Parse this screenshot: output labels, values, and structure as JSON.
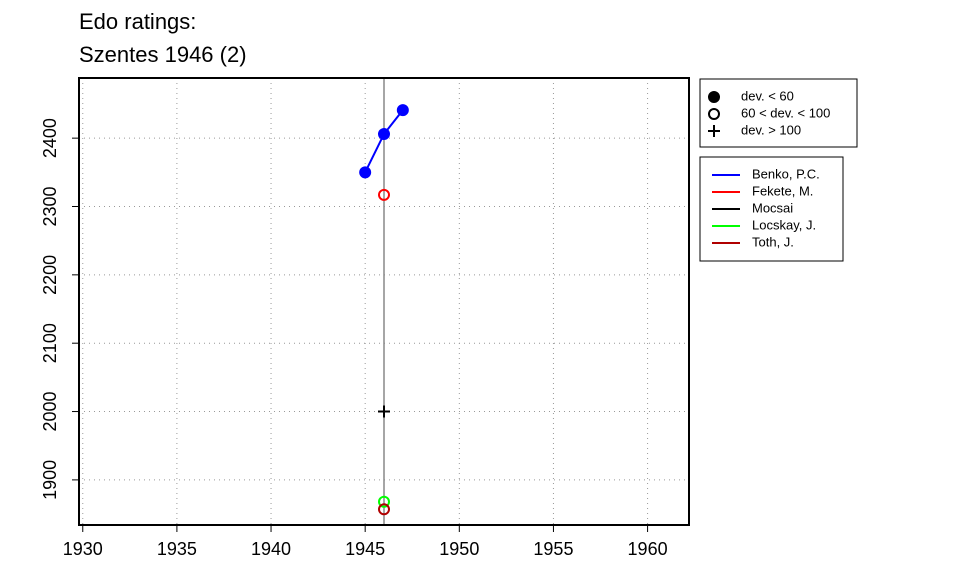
{
  "chart_data": {
    "type": "line",
    "title": "Edo ratings:",
    "subtitle": "Szentes 1946 (2)",
    "xlim": [
      1929.8,
      1962.2
    ],
    "xticks": [
      1930,
      1935,
      1940,
      1945,
      1950,
      1955,
      1960
    ],
    "ylim": [
      1834,
      2488
    ],
    "yticks": [
      1900,
      2000,
      2100,
      2200,
      2300,
      2400
    ],
    "grid": true,
    "reference_line_x": 1946,
    "reference_line_color": "#888888",
    "marker_legend": [
      {
        "label": "dev. < 60",
        "marker": "filled"
      },
      {
        "label": "60 < dev. < 100",
        "marker": "open"
      },
      {
        "label": "dev. > 100",
        "marker": "plus"
      }
    ],
    "series": [
      {
        "name": "Benko, P.C.",
        "color": "#0000ff",
        "marker": "filled",
        "x": [
          1945,
          1946,
          1947
        ],
        "values": [
          2350,
          2406,
          2441
        ]
      },
      {
        "name": "Fekete, M.",
        "color": "#ff0000",
        "marker": "open",
        "x": [
          1946
        ],
        "values": [
          2317
        ]
      },
      {
        "name": "Mocsai",
        "color": "#000000",
        "marker": "plus",
        "x": [
          1946
        ],
        "values": [
          2000
        ]
      },
      {
        "name": "Locskay, J.",
        "color": "#00ff00",
        "marker": "open",
        "x": [
          1946
        ],
        "values": [
          1868
        ]
      },
      {
        "name": "Toth, J.",
        "color": "#b00000",
        "marker": "open",
        "x": [
          1946
        ],
        "values": [
          1857
        ]
      }
    ]
  }
}
